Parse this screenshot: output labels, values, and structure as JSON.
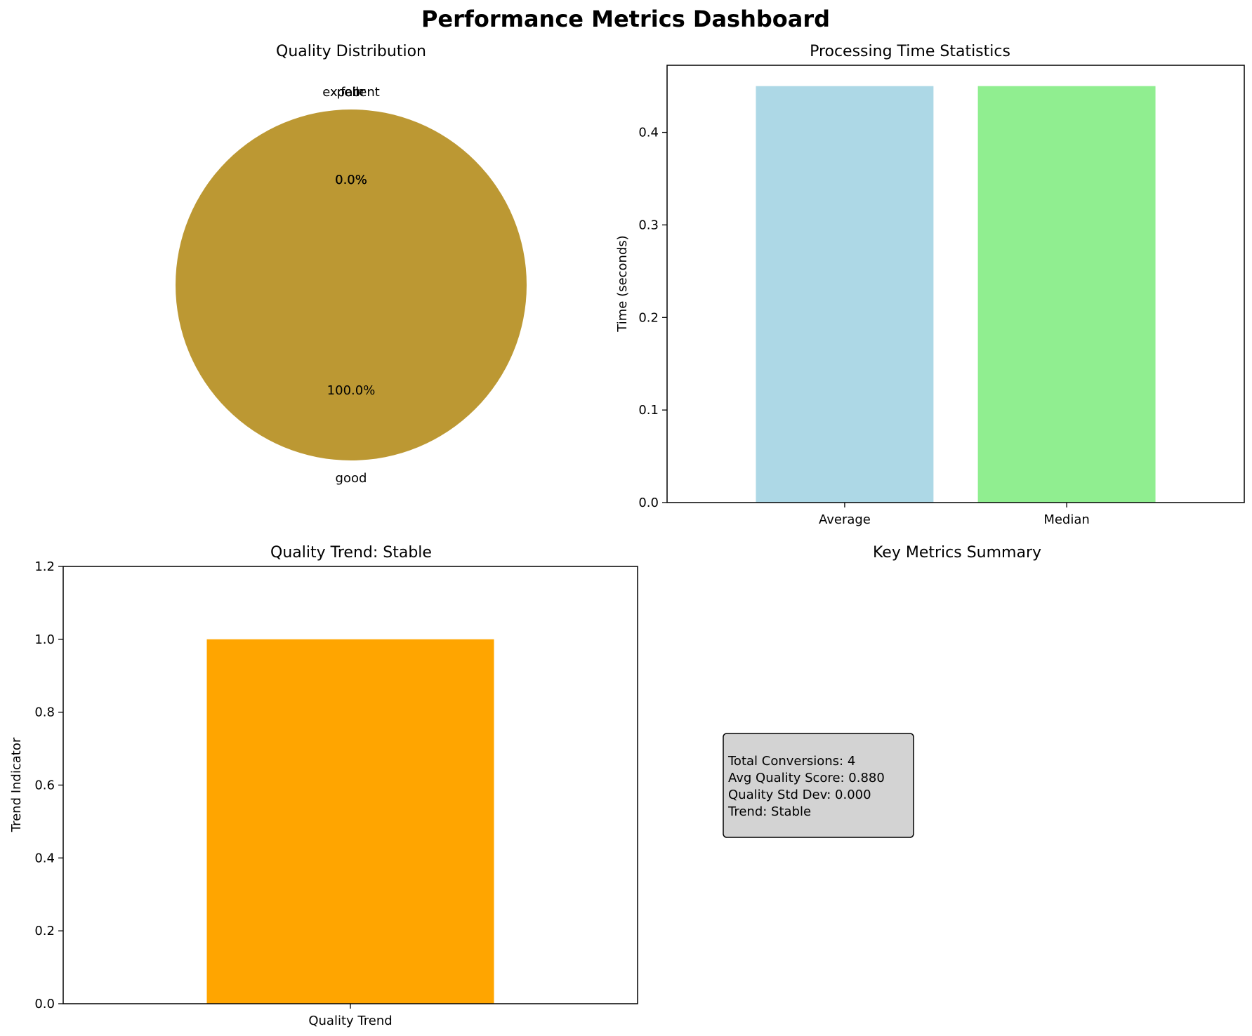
{
  "title": "Performance Metrics Dashboard",
  "chart_data": [
    {
      "type": "pie",
      "title": "Quality Distribution",
      "labels": [
        "excellent",
        "good",
        "fair",
        "poor"
      ],
      "values": [
        0,
        100,
        0,
        0
      ],
      "autopct": [
        "0.0%",
        "100.0%",
        "0.0%",
        "0.0%"
      ],
      "colors": [
        "#1f77b4",
        "#bc9833",
        "#2ca02c",
        "#d62728"
      ]
    },
    {
      "type": "bar",
      "title": "Processing Time Statistics",
      "categories": [
        "Average",
        "Median"
      ],
      "values": [
        0.45,
        0.45
      ],
      "ylabel": "Time (seconds)",
      "xlabel": "",
      "ylim": [
        0,
        0.4725
      ],
      "yticks": [
        0.0,
        0.1,
        0.2,
        0.3,
        0.4
      ],
      "ytick_labels": [
        "0.0",
        "0.1",
        "0.2",
        "0.3",
        "0.4"
      ],
      "colors": [
        "#add8e6",
        "#90ee90"
      ]
    },
    {
      "type": "bar",
      "title": "Quality Trend: Stable",
      "categories": [
        "Quality Trend"
      ],
      "values": [
        1.0
      ],
      "ylabel": "Trend Indicator",
      "xlabel": "",
      "ylim": [
        0,
        1.2
      ],
      "yticks": [
        0.0,
        0.2,
        0.4,
        0.6,
        0.8,
        1.0,
        1.2
      ],
      "ytick_labels": [
        "0.0",
        "0.2",
        "0.4",
        "0.6",
        "0.8",
        "1.0",
        "1.2"
      ],
      "colors": [
        "#ffa500"
      ]
    },
    {
      "type": "table",
      "title": "Key Metrics Summary",
      "lines": [
        "Total Conversions: 4",
        "Avg Quality Score: 0.880",
        "Quality Std Dev: 0.000",
        "Trend: Stable"
      ],
      "box_color": "#d3d3d3"
    }
  ]
}
